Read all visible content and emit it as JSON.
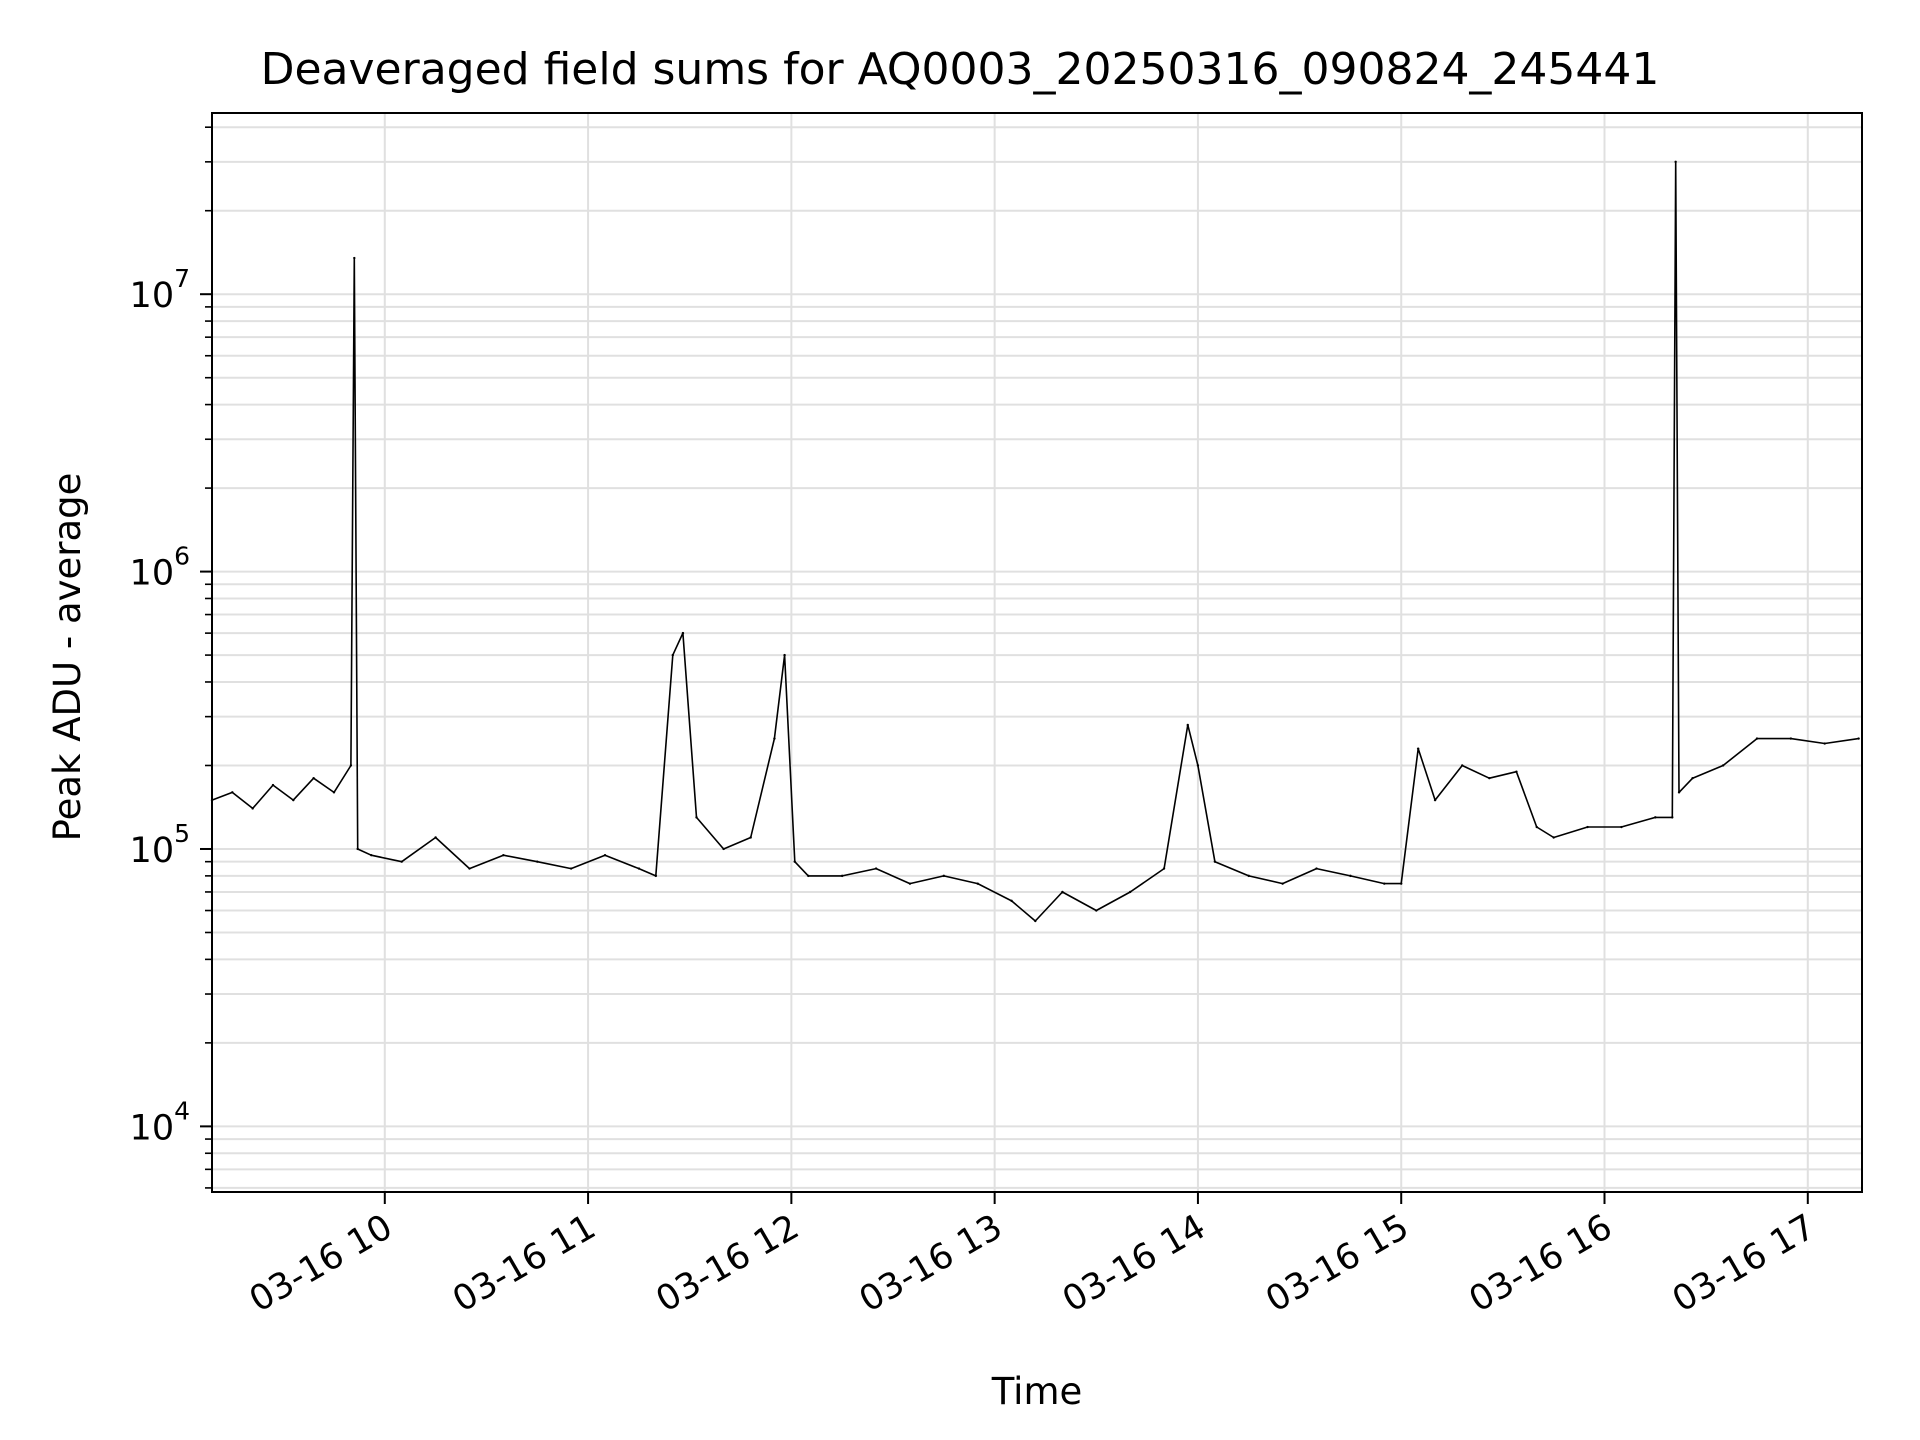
{
  "chart_data": {
    "type": "line",
    "title": "Deaveraged field sums for AQ0003_20250316_090824_245441",
    "xlabel": "Time",
    "ylabel": "Peak ADU - average",
    "y_scale": "log",
    "ylim": [
      5800,
      45000000
    ],
    "xlim": [
      "2025-03-16 09:09",
      "2025-03-16 17:16"
    ],
    "grid": true,
    "legend": "none",
    "line_color": "#000000",
    "grid_color": "#e0e0e0",
    "x_ticks": [
      {
        "value": "2025-03-16 10:00",
        "label": "03-16 10"
      },
      {
        "value": "2025-03-16 11:00",
        "label": "03-16 11"
      },
      {
        "value": "2025-03-16 12:00",
        "label": "03-16 12"
      },
      {
        "value": "2025-03-16 13:00",
        "label": "03-16 13"
      },
      {
        "value": "2025-03-16 14:00",
        "label": "03-16 14"
      },
      {
        "value": "2025-03-16 15:00",
        "label": "03-16 15"
      },
      {
        "value": "2025-03-16 16:00",
        "label": "03-16 16"
      },
      {
        "value": "2025-03-16 17:00",
        "label": "03-16 17"
      }
    ],
    "y_ticks": [
      {
        "value": 10000,
        "base": "10",
        "exp": "4"
      },
      {
        "value": 100000,
        "base": "10",
        "exp": "5"
      },
      {
        "value": 1000000,
        "base": "10",
        "exp": "6"
      },
      {
        "value": 10000000,
        "base": "10",
        "exp": "7"
      }
    ],
    "series": [
      {
        "x": [
          "2025-03-16 09:09",
          "2025-03-16 09:15",
          "2025-03-16 09:21",
          "2025-03-16 09:27",
          "2025-03-16 09:33",
          "2025-03-16 09:39",
          "2025-03-16 09:45",
          "2025-03-16 09:50",
          "2025-03-16 09:51",
          "2025-03-16 09:52",
          "2025-03-16 09:56",
          "2025-03-16 10:05",
          "2025-03-16 10:15",
          "2025-03-16 10:25",
          "2025-03-16 10:35",
          "2025-03-16 10:45",
          "2025-03-16 10:55",
          "2025-03-16 11:05",
          "2025-03-16 11:15",
          "2025-03-16 11:20",
          "2025-03-16 11:25",
          "2025-03-16 11:28",
          "2025-03-16 11:32",
          "2025-03-16 11:40",
          "2025-03-16 11:48",
          "2025-03-16 11:55",
          "2025-03-16 11:58",
          "2025-03-16 12:01",
          "2025-03-16 12:05",
          "2025-03-16 12:15",
          "2025-03-16 12:25",
          "2025-03-16 12:35",
          "2025-03-16 12:45",
          "2025-03-16 12:55",
          "2025-03-16 13:05",
          "2025-03-16 13:12",
          "2025-03-16 13:20",
          "2025-03-16 13:30",
          "2025-03-16 13:40",
          "2025-03-16 13:50",
          "2025-03-16 13:57",
          "2025-03-16 14:00",
          "2025-03-16 14:05",
          "2025-03-16 14:15",
          "2025-03-16 14:25",
          "2025-03-16 14:35",
          "2025-03-16 14:45",
          "2025-03-16 14:55",
          "2025-03-16 15:00",
          "2025-03-16 15:05",
          "2025-03-16 15:10",
          "2025-03-16 15:18",
          "2025-03-16 15:26",
          "2025-03-16 15:34",
          "2025-03-16 15:40",
          "2025-03-16 15:45",
          "2025-03-16 15:55",
          "2025-03-16 16:05",
          "2025-03-16 16:15",
          "2025-03-16 16:20",
          "2025-03-16 16:21",
          "2025-03-16 16:22",
          "2025-03-16 16:26",
          "2025-03-16 16:35",
          "2025-03-16 16:45",
          "2025-03-16 16:55",
          "2025-03-16 17:05",
          "2025-03-16 17:15"
        ],
        "y": [
          150000,
          160000,
          140000,
          170000,
          150000,
          180000,
          160000,
          200000,
          13500000,
          100000,
          95000,
          90000,
          110000,
          85000,
          95000,
          90000,
          85000,
          95000,
          85000,
          80000,
          500000,
          600000,
          130000,
          100000,
          110000,
          250000,
          500000,
          90000,
          80000,
          80000,
          85000,
          75000,
          80000,
          75000,
          65000,
          55000,
          70000,
          60000,
          70000,
          85000,
          280000,
          200000,
          90000,
          80000,
          75000,
          85000,
          80000,
          75000,
          75000,
          230000,
          150000,
          200000,
          180000,
          190000,
          120000,
          110000,
          120000,
          120000,
          130000,
          130000,
          30000000,
          160000,
          180000,
          200000,
          250000,
          250000,
          240000,
          250000
        ]
      }
    ]
  }
}
